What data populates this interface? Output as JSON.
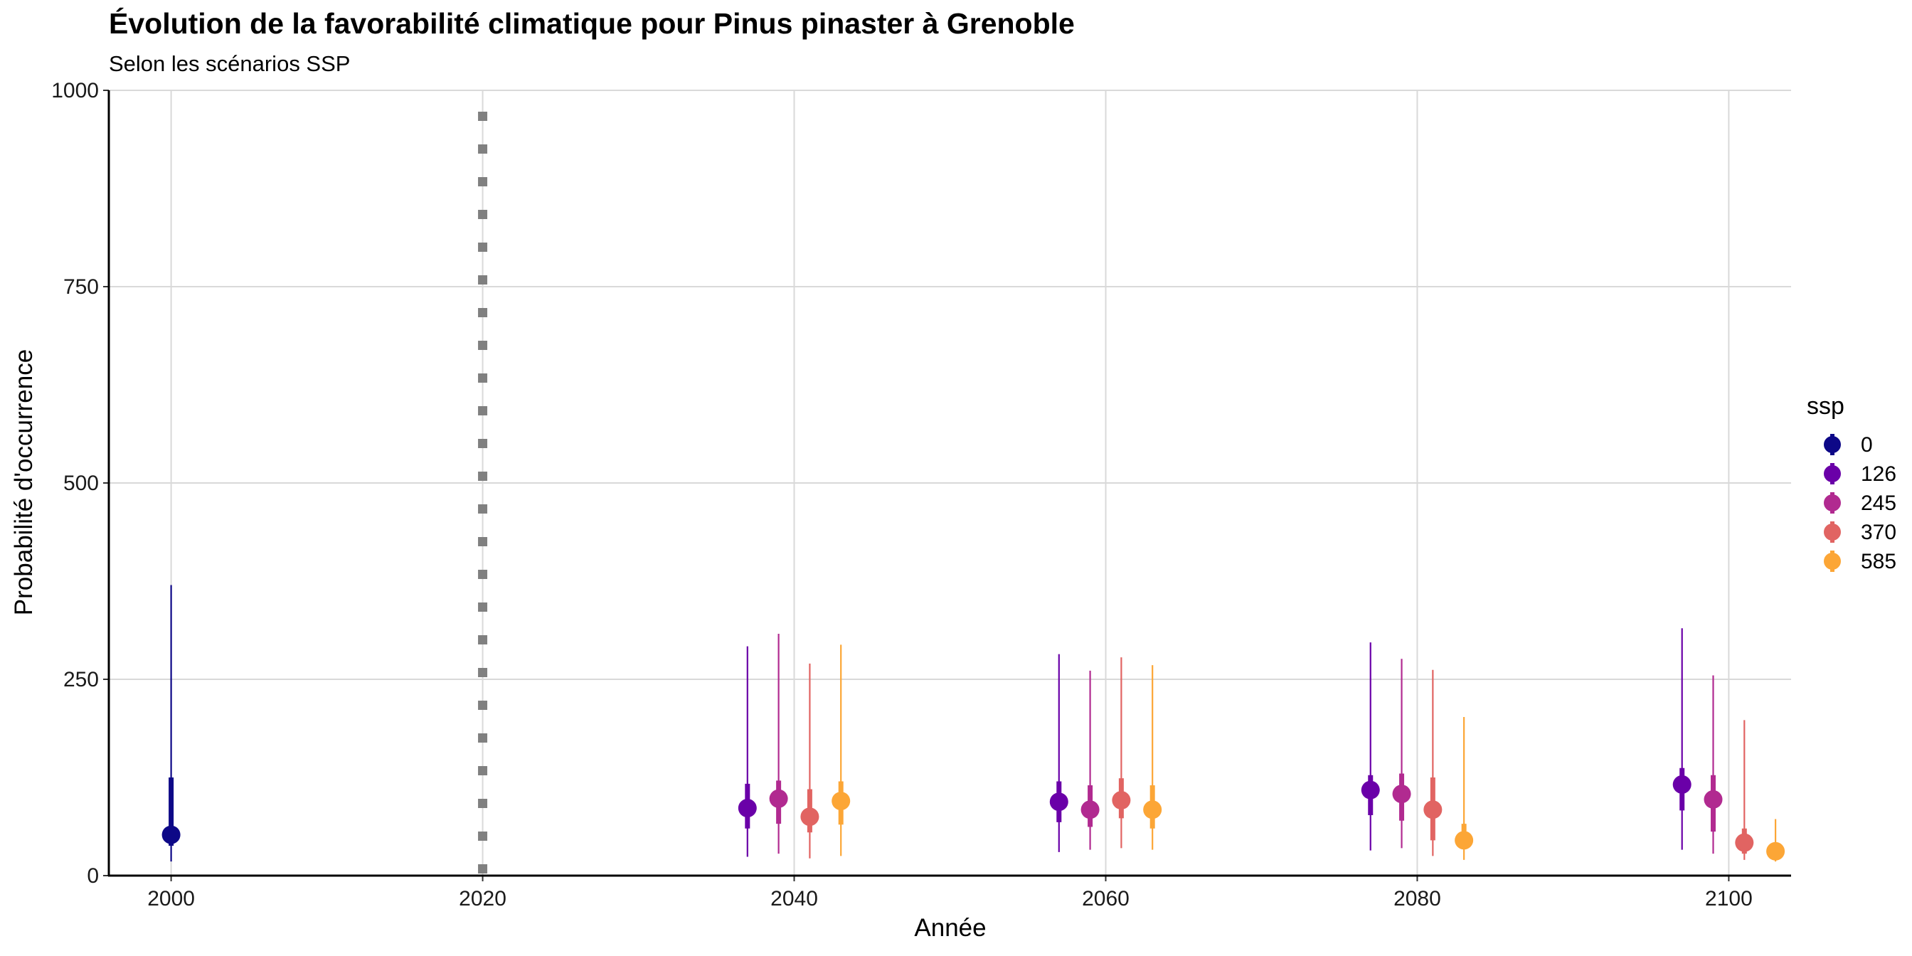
{
  "chart_data": {
    "type": "scatter",
    "subtype": "pointrange",
    "title": "Évolution de la favorabilité climatique pour Pinus pinaster à Grenoble",
    "subtitle": "Selon les scénarios SSP",
    "xlabel": "Année",
    "ylabel": "Probabilité d'occurrence",
    "xlim": [
      1996,
      2104
    ],
    "ylim": [
      0,
      1000
    ],
    "x_ticks": [
      "2000",
      "2020",
      "2040",
      "2060",
      "2080",
      "2100"
    ],
    "y_ticks": [
      "0",
      "250",
      "500",
      "750",
      "1000"
    ],
    "grid": true,
    "reference_line": {
      "x": 2020,
      "style": "dotted",
      "color": "#808080"
    },
    "legend": {
      "title": "ssp",
      "position": "right"
    },
    "series": [
      {
        "name": "0",
        "color": "#0d0887",
        "points": [
          {
            "x": 2000,
            "y": 52,
            "q_low": 38,
            "q_high": 125,
            "min": 18,
            "max": 370
          }
        ]
      },
      {
        "name": "126",
        "color": "#6a00a8",
        "points": [
          {
            "x": 2037,
            "y": 86,
            "q_low": 60,
            "q_high": 117,
            "min": 24,
            "max": 292
          },
          {
            "x": 2057,
            "y": 94,
            "q_low": 68,
            "q_high": 120,
            "min": 30,
            "max": 282
          },
          {
            "x": 2077,
            "y": 109,
            "q_low": 77,
            "q_high": 128,
            "min": 32,
            "max": 297
          },
          {
            "x": 2097,
            "y": 116,
            "q_low": 83,
            "q_high": 137,
            "min": 33,
            "max": 315
          }
        ]
      },
      {
        "name": "245",
        "color": "#b12a90",
        "points": [
          {
            "x": 2039,
            "y": 98,
            "q_low": 66,
            "q_high": 121,
            "min": 28,
            "max": 308
          },
          {
            "x": 2059,
            "y": 84,
            "q_low": 62,
            "q_high": 115,
            "min": 33,
            "max": 261
          },
          {
            "x": 2079,
            "y": 104,
            "q_low": 70,
            "q_high": 130,
            "min": 35,
            "max": 276
          },
          {
            "x": 2099,
            "y": 97,
            "q_low": 56,
            "q_high": 128,
            "min": 28,
            "max": 255
          }
        ]
      },
      {
        "name": "370",
        "color": "#e16462",
        "points": [
          {
            "x": 2041,
            "y": 75,
            "q_low": 55,
            "q_high": 110,
            "min": 22,
            "max": 270
          },
          {
            "x": 2061,
            "y": 96,
            "q_low": 73,
            "q_high": 124,
            "min": 35,
            "max": 278
          },
          {
            "x": 2081,
            "y": 84,
            "q_low": 45,
            "q_high": 125,
            "min": 25,
            "max": 262
          },
          {
            "x": 2101,
            "y": 42,
            "q_low": 28,
            "q_high": 60,
            "min": 20,
            "max": 198
          }
        ]
      },
      {
        "name": "585",
        "color": "#fca636",
        "points": [
          {
            "x": 2043,
            "y": 95,
            "q_low": 65,
            "q_high": 120,
            "min": 25,
            "max": 294
          },
          {
            "x": 2063,
            "y": 84,
            "q_low": 60,
            "q_high": 115,
            "min": 33,
            "max": 268
          },
          {
            "x": 2083,
            "y": 45,
            "q_low": 35,
            "q_high": 66,
            "min": 20,
            "max": 202
          },
          {
            "x": 2103,
            "y": 31,
            "q_low": 24,
            "q_high": 40,
            "min": 18,
            "max": 72
          }
        ]
      }
    ]
  }
}
